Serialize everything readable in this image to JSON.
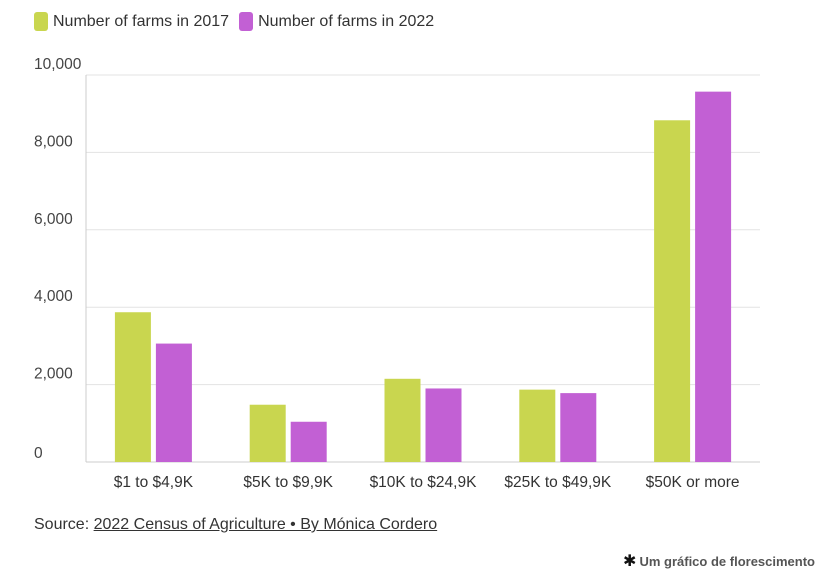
{
  "colors": {
    "series_2017": "#c9d64f",
    "series_2022": "#c260d4",
    "grid": "#e3e3e3",
    "axis": "#cccccc"
  },
  "legend": [
    {
      "label": "Number of farms in 2017"
    },
    {
      "label": "Number of farms in 2022"
    }
  ],
  "chart_data": {
    "type": "bar",
    "categories": [
      "$1 to $4,9K",
      "$5K to $9,9K",
      "$10K to $24,9K",
      "$25K to $49,9K",
      "$50K or more"
    ],
    "series": [
      {
        "name": "Number of farms in 2017",
        "values": [
          3870,
          1480,
          2150,
          1870,
          8830
        ]
      },
      {
        "name": "Number of farms in 2022",
        "values": [
          3060,
          1040,
          1900,
          1780,
          9570
        ]
      }
    ],
    "y_ticks": [
      "0",
      "2,000",
      "4,000",
      "6,000",
      "8,000",
      "10,000"
    ],
    "ylim": [
      0,
      10000
    ],
    "grid": true,
    "legend_position": "top-left"
  },
  "footer": {
    "source_prefix": "Source: ",
    "source_link": "2022 Census of Agriculture • By Mónica Cordero",
    "credit": "Um gráfico de florescimento",
    "credit_icon": "asterisk-icon"
  }
}
